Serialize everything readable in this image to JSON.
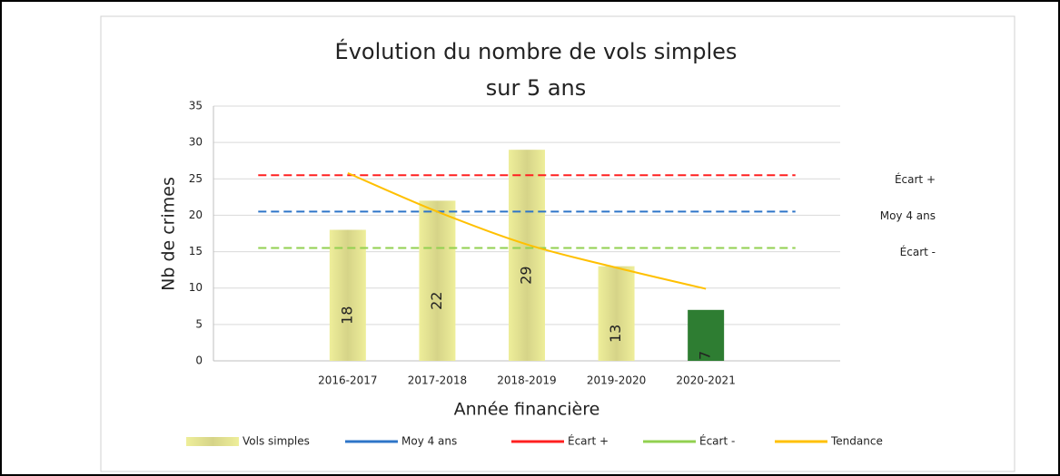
{
  "chart_data": {
    "type": "bar",
    "title": [
      "Évolution du nombre de vols simples",
      "sur 5 ans"
    ],
    "x_label": "Année financière",
    "y_label": "Nb de crimes",
    "categories": [
      null,
      "2016-2017",
      "2017-2018",
      "2018-2019",
      "2019-2020",
      "2020-2021",
      null
    ],
    "ylim": [
      0,
      35
    ],
    "yticks": [
      0,
      5,
      10,
      15,
      20,
      25,
      30,
      35
    ],
    "grid": true,
    "legend": "bottom",
    "series": [
      {
        "name": "Vols simples",
        "type": "bar",
        "color": "#e2e07f",
        "colors": [
          null,
          "#e2e07f",
          "#e2e07f",
          "#e2e07f",
          "#e2e07f",
          "#2e7d32",
          null
        ],
        "values": [
          null,
          18,
          22,
          29,
          13,
          7,
          null
        ],
        "data_labels": true
      },
      {
        "name": "Moy 4 ans",
        "type": "line",
        "color": "#2e75c8",
        "dashed": true,
        "end_label": true,
        "values": [
          20.5,
          20.5,
          20.5,
          20.5,
          20.5,
          20.5,
          20.5
        ]
      },
      {
        "name": "Écart +",
        "type": "line",
        "color": "#ff2020",
        "dashed": true,
        "end_label": true,
        "values": [
          25.5,
          25.5,
          25.5,
          25.5,
          25.5,
          25.5,
          25.5
        ]
      },
      {
        "name": "Écart -",
        "type": "line",
        "color": "#92d050",
        "dashed": true,
        "end_label": true,
        "values": [
          15.5,
          15.5,
          15.5,
          15.5,
          15.5,
          15.5,
          15.5
        ]
      },
      {
        "name": "Tendance",
        "type": "line",
        "color": "#ffc000",
        "dashed": false,
        "smooth": true,
        "values": [
          null,
          25.8,
          20.5,
          16,
          12.8,
          9.9,
          null
        ]
      }
    ]
  }
}
